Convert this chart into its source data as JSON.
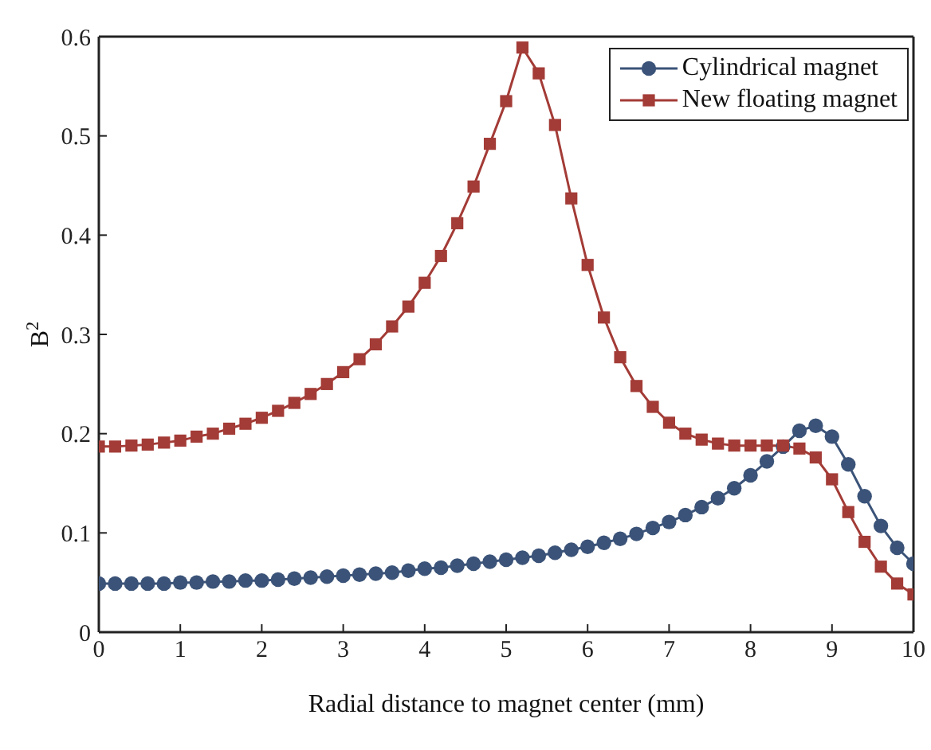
{
  "chart_data": {
    "type": "line",
    "xlabel": "Radial distance to magnet center (mm)",
    "ylabel": "B$^{2}$",
    "x": [
      0,
      0.2,
      0.4,
      0.6,
      0.8,
      1,
      1.2,
      1.4,
      1.6,
      1.8,
      2,
      2.2,
      2.4,
      2.6,
      2.8,
      3,
      3.2,
      3.4,
      3.6,
      3.8,
      4,
      4.2,
      4.4,
      4.6,
      4.8,
      5,
      5.2,
      5.4,
      5.6,
      5.8,
      6,
      6.2,
      6.4,
      6.6,
      6.8,
      7,
      7.2,
      7.4,
      7.6,
      7.8,
      8,
      8.2,
      8.4,
      8.6,
      8.8,
      9,
      9.2,
      9.4,
      9.6,
      9.8,
      10
    ],
    "series": [
      {
        "name": "Cylindrical magnet",
        "color": "#3b5378",
        "marker": "circle",
        "values": [
          0.049,
          0.049,
          0.049,
          0.049,
          0.049,
          0.05,
          0.05,
          0.051,
          0.051,
          0.052,
          0.052,
          0.053,
          0.054,
          0.055,
          0.056,
          0.057,
          0.058,
          0.059,
          0.06,
          0.062,
          0.064,
          0.065,
          0.067,
          0.069,
          0.071,
          0.073,
          0.075,
          0.077,
          0.08,
          0.083,
          0.086,
          0.09,
          0.094,
          0.099,
          0.105,
          0.111,
          0.118,
          0.126,
          0.135,
          0.145,
          0.158,
          0.172,
          0.187,
          0.203,
          0.208,
          0.197,
          0.169,
          0.137,
          0.107,
          0.085,
          0.069
        ]
      },
      {
        "name": "New floating magnet",
        "color": "#a33b36",
        "marker": "square",
        "values": [
          0.187,
          0.187,
          0.188,
          0.189,
          0.191,
          0.193,
          0.197,
          0.2,
          0.205,
          0.21,
          0.216,
          0.223,
          0.231,
          0.24,
          0.25,
          0.262,
          0.275,
          0.29,
          0.308,
          0.328,
          0.352,
          0.379,
          0.412,
          0.449,
          0.492,
          0.535,
          0.589,
          0.563,
          0.511,
          0.437,
          0.37,
          0.317,
          0.277,
          0.248,
          0.227,
          0.211,
          0.2,
          0.194,
          0.19,
          0.188,
          0.188,
          0.188,
          0.188,
          0.185,
          0.176,
          0.154,
          0.121,
          0.091,
          0.066,
          0.049,
          0.038
        ]
      }
    ],
    "xlim": [
      0,
      10
    ],
    "xticks": [
      0,
      1,
      2,
      3,
      4,
      5,
      6,
      7,
      8,
      9,
      10
    ],
    "ylim": [
      0,
      0.6
    ],
    "yticks": [
      0,
      0.1,
      0.2,
      0.3,
      0.4,
      0.5,
      0.6
    ],
    "grid": false,
    "legend": "top right",
    "line_style": "solid"
  }
}
